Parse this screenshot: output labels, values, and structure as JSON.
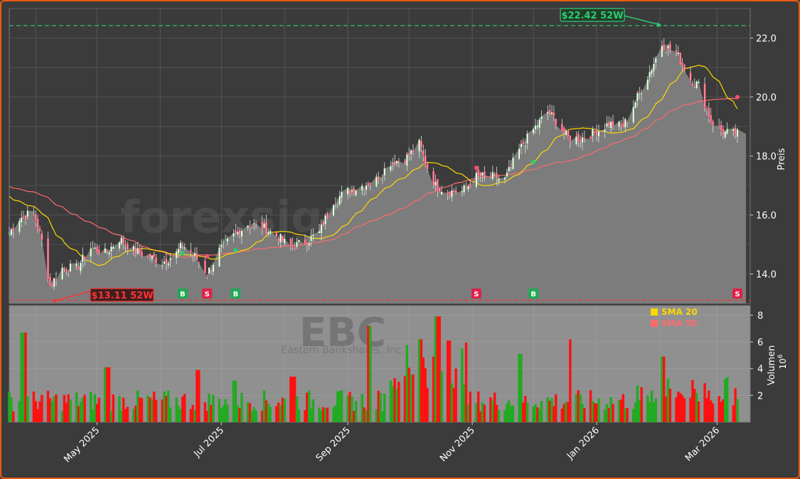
{
  "chart_data": {
    "type": "candlestick",
    "watermark": "forexsignale.trade",
    "symbol": "EBC",
    "company": "Eastern Bankshares, Inc.",
    "price_axis_label": "Preis",
    "volume_axis_label": "Volumen",
    "volume_axis_exponent": "10",
    "volume_axis_exponent_power": "6",
    "price_range": [
      13.0,
      23.0
    ],
    "price_ticks": [
      {
        "v": 14,
        "label": "14.0"
      },
      {
        "v": 16,
        "label": "16.0"
      },
      {
        "v": 18,
        "label": "18.0"
      },
      {
        "v": 20,
        "label": "20.0"
      },
      {
        "v": 22,
        "label": "22.0"
      }
    ],
    "volume_range_millions": [
      0,
      8.5
    ],
    "volume_ticks": [
      {
        "v": 2,
        "label": "2"
      },
      {
        "v": 4,
        "label": "4"
      },
      {
        "v": 6,
        "label": "6"
      },
      {
        "v": 8,
        "label": "8"
      }
    ],
    "date_start": "2025-03-19",
    "date_end": "2026-03-11",
    "x_ticks": [
      {
        "date": "2025-05-01",
        "label": "May 2025"
      },
      {
        "date": "2025-07-01",
        "label": "Jul 2025"
      },
      {
        "date": "2025-09-01",
        "label": "Sep 2025"
      },
      {
        "date": "2025-11-01",
        "label": "Nov 2025"
      },
      {
        "date": "2026-01-01",
        "label": "Jan 2026"
      },
      {
        "date": "2026-03-01",
        "label": "Mar 2026"
      }
    ],
    "close_price_anchors": [
      [
        "2025-03-19",
        15.4
      ],
      [
        "2025-03-24",
        15.9
      ],
      [
        "2025-03-31",
        16.1
      ],
      [
        "2025-04-04",
        15.1
      ],
      [
        "2025-04-08",
        13.6
      ],
      [
        "2025-04-14",
        14.2
      ],
      [
        "2025-04-21",
        14.2
      ],
      [
        "2025-04-28",
        14.9
      ],
      [
        "2025-05-05",
        14.7
      ],
      [
        "2025-05-12",
        15.2
      ],
      [
        "2025-05-19",
        14.8
      ],
      [
        "2025-05-26",
        14.6
      ],
      [
        "2025-06-02",
        14.4
      ],
      [
        "2025-06-09",
        14.7
      ],
      [
        "2025-06-12",
        15.0
      ],
      [
        "2025-06-18",
        14.6
      ],
      [
        "2025-06-24",
        14.0
      ],
      [
        "2025-06-30",
        14.8
      ],
      [
        "2025-07-07",
        15.3
      ],
      [
        "2025-07-14",
        15.7
      ],
      [
        "2025-07-21",
        15.6
      ],
      [
        "2025-07-28",
        15.3
      ],
      [
        "2025-08-04",
        14.9
      ],
      [
        "2025-08-11",
        15.1
      ],
      [
        "2025-08-18",
        15.4
      ],
      [
        "2025-08-25",
        16.5
      ],
      [
        "2025-09-01",
        16.8
      ],
      [
        "2025-09-08",
        17.0
      ],
      [
        "2025-09-15",
        17.2
      ],
      [
        "2025-09-22",
        17.8
      ],
      [
        "2025-09-29",
        17.9
      ],
      [
        "2025-10-06",
        18.4
      ],
      [
        "2025-10-10",
        17.6
      ],
      [
        "2025-10-14",
        17.0
      ],
      [
        "2025-10-20",
        16.8
      ],
      [
        "2025-10-27",
        16.8
      ],
      [
        "2025-11-03",
        17.3
      ],
      [
        "2025-11-10",
        17.3
      ],
      [
        "2025-11-17",
        17.2
      ],
      [
        "2025-11-24",
        18.2
      ],
      [
        "2025-12-01",
        18.9
      ],
      [
        "2025-12-08",
        19.5
      ],
      [
        "2025-12-12",
        19.2
      ],
      [
        "2025-12-18",
        18.6
      ],
      [
        "2025-12-24",
        18.6
      ],
      [
        "2025-12-31",
        18.8
      ],
      [
        "2026-01-07",
        19.1
      ],
      [
        "2026-01-14",
        19.0
      ],
      [
        "2026-01-21",
        20.0
      ],
      [
        "2026-01-28",
        21.0
      ],
      [
        "2026-02-02",
        21.8
      ],
      [
        "2026-02-09",
        21.5
      ],
      [
        "2026-02-16",
        20.6
      ],
      [
        "2026-02-20",
        20.4
      ],
      [
        "2026-02-26",
        19.2
      ],
      [
        "2026-03-04",
        18.8
      ],
      [
        "2026-03-11",
        18.75
      ]
    ],
    "last_close": 18.75,
    "sma20": {
      "label": "SMA 20",
      "color": "#ffd700"
    },
    "sma50": {
      "label": "SMA 50",
      "color": "#ff6b6b"
    },
    "sma20_start_value": 16.7,
    "sma50_start_value": 17.0,
    "high_52w": {
      "label": "$22.42 52W",
      "value": 22.42,
      "date": "2026-02-02"
    },
    "low_52w": {
      "label": "$13.11 52W",
      "value": 13.11,
      "date": "2025-04-08"
    },
    "signals": [
      {
        "type": "B",
        "date": "2025-06-12",
        "price": 14.7
      },
      {
        "type": "S",
        "date": "2025-06-24",
        "price": 14.6
      },
      {
        "type": "B",
        "date": "2025-07-08",
        "price": 14.8
      },
      {
        "type": "S",
        "date": "2025-11-03",
        "price": 17.6
      },
      {
        "type": "B",
        "date": "2025-12-01",
        "price": 17.8
      },
      {
        "type": "S",
        "date": "2026-03-11",
        "price": 20.0
      }
    ],
    "volume_spikes_millions": [
      [
        "2025-03-26",
        6.7
      ],
      [
        "2025-05-06",
        4.1
      ],
      [
        "2025-06-20",
        3.9
      ],
      [
        "2025-07-07",
        3.1
      ],
      [
        "2025-08-05",
        3.4
      ],
      [
        "2025-09-12",
        7.2
      ],
      [
        "2025-10-06",
        6.2
      ],
      [
        "2025-10-15",
        7.9
      ],
      [
        "2025-10-20",
        6.1
      ],
      [
        "2025-11-24",
        5.1
      ],
      [
        "2025-12-20",
        6.2
      ],
      [
        "2026-02-02",
        4.9
      ]
    ],
    "colors": {
      "up": "#22aa22",
      "down": "#ff1111",
      "grid": "#5a5a5a",
      "panel": "#3b3b3b",
      "price_area": "#808080",
      "volume_panel": "#909090",
      "high_line": "#2ecc71",
      "low_line": "#ff3333"
    }
  }
}
